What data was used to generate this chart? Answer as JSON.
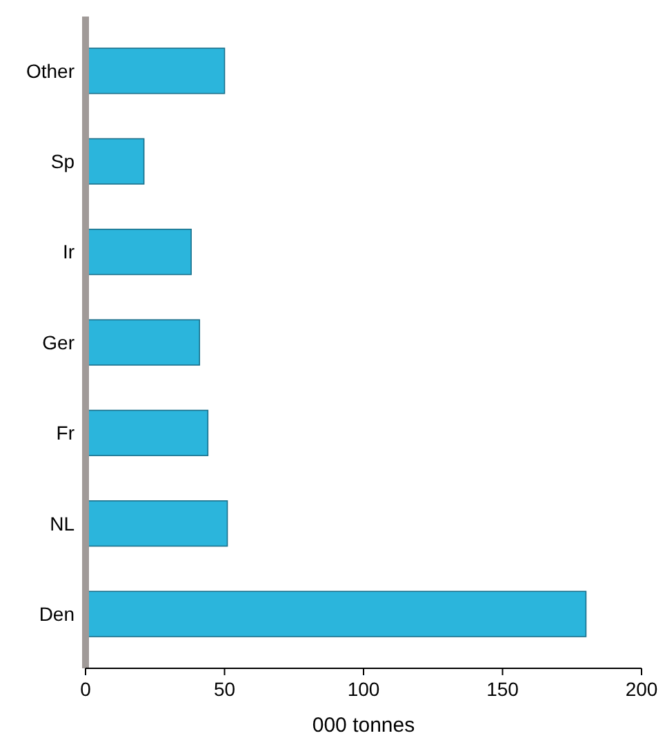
{
  "chart_data": {
    "type": "bar",
    "orientation": "horizontal",
    "xlabel": "000 tonnes",
    "categories": [
      "Other",
      "Sp",
      "Ir",
      "Ger",
      "Fr",
      "NL",
      "Den"
    ],
    "values": [
      50,
      21,
      38,
      41,
      44,
      51,
      180
    ],
    "color": "#2bb5dc",
    "xlim": [
      0,
      200
    ],
    "xticks": [
      0,
      50,
      100,
      150,
      200
    ],
    "grid": false
  }
}
